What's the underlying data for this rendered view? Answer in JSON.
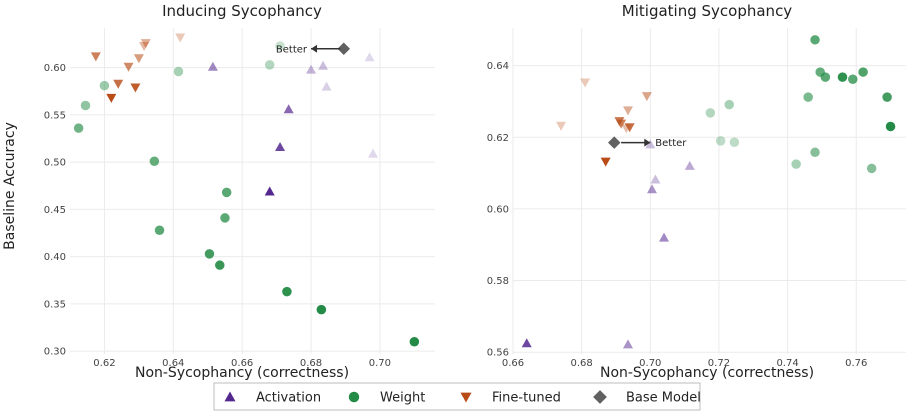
{
  "chart_data": [
    {
      "type": "scatter",
      "title": "Inducing Sycophancy",
      "xlabel": "Non-Sycophancy (correctness)",
      "ylabel": "Baseline Accuracy",
      "xlim": [
        0.61,
        0.716
      ],
      "ylim": [
        0.297,
        0.642
      ],
      "xticks": [
        "0.62",
        "0.64",
        "0.66",
        "0.68",
        "0.70"
      ],
      "yticks": [
        "0.30",
        "0.35",
        "0.40",
        "0.45",
        "0.50",
        "0.55",
        "0.60"
      ],
      "grid": true,
      "annotation": {
        "text": "Better",
        "arrow_from": [
          0.6885,
          0.62
        ],
        "arrow_to": [
          0.68,
          0.62
        ]
      },
      "series": [
        {
          "name": "Activation",
          "marker": "triangle-up",
          "color": "#54278f",
          "points": [
            {
              "x": 0.6515,
              "y": 0.601,
              "a": 0.55
            },
            {
              "x": 0.668,
              "y": 0.469,
              "a": 1.0
            },
            {
              "x": 0.671,
              "y": 0.516,
              "a": 0.85
            },
            {
              "x": 0.6735,
              "y": 0.556,
              "a": 0.7
            },
            {
              "x": 0.68,
              "y": 0.598,
              "a": 0.35
            },
            {
              "x": 0.6835,
              "y": 0.602,
              "a": 0.3
            },
            {
              "x": 0.6845,
              "y": 0.58,
              "a": 0.22
            },
            {
              "x": 0.697,
              "y": 0.611,
              "a": 0.18
            },
            {
              "x": 0.698,
              "y": 0.509,
              "a": 0.18
            }
          ]
        },
        {
          "name": "Weight",
          "marker": "circle",
          "color": "#238b45",
          "points": [
            {
              "x": 0.6125,
              "y": 0.536,
              "a": 0.65
            },
            {
              "x": 0.6145,
              "y": 0.56,
              "a": 0.5
            },
            {
              "x": 0.62,
              "y": 0.581,
              "a": 0.45
            },
            {
              "x": 0.6345,
              "y": 0.501,
              "a": 0.7
            },
            {
              "x": 0.636,
              "y": 0.428,
              "a": 0.75
            },
            {
              "x": 0.6415,
              "y": 0.596,
              "a": 0.4
            },
            {
              "x": 0.6505,
              "y": 0.403,
              "a": 0.85
            },
            {
              "x": 0.6535,
              "y": 0.391,
              "a": 0.9
            },
            {
              "x": 0.655,
              "y": 0.441,
              "a": 0.75
            },
            {
              "x": 0.6555,
              "y": 0.468,
              "a": 0.75
            },
            {
              "x": 0.668,
              "y": 0.603,
              "a": 0.35
            },
            {
              "x": 0.671,
              "y": 0.623,
              "a": 0.25
            },
            {
              "x": 0.673,
              "y": 0.363,
              "a": 0.95
            },
            {
              "x": 0.683,
              "y": 0.344,
              "a": 1.0
            },
            {
              "x": 0.71,
              "y": 0.31,
              "a": 1.0
            }
          ]
        },
        {
          "name": "Fine-tuned",
          "marker": "triangle-down",
          "color": "#b84b16",
          "points": [
            {
              "x": 0.6175,
              "y": 0.612,
              "a": 0.7
            },
            {
              "x": 0.622,
              "y": 0.568,
              "a": 1.0
            },
            {
              "x": 0.624,
              "y": 0.583,
              "a": 0.8
            },
            {
              "x": 0.627,
              "y": 0.601,
              "a": 0.65
            },
            {
              "x": 0.629,
              "y": 0.579,
              "a": 0.9
            },
            {
              "x": 0.63,
              "y": 0.61,
              "a": 0.55
            },
            {
              "x": 0.6315,
              "y": 0.623,
              "a": 0.4
            },
            {
              "x": 0.632,
              "y": 0.626,
              "a": 0.45
            },
            {
              "x": 0.642,
              "y": 0.632,
              "a": 0.3
            }
          ]
        },
        {
          "name": "Base Model",
          "marker": "diamond",
          "color": "#616161",
          "points": [
            {
              "x": 0.6895,
              "y": 0.62,
              "a": 1.0
            }
          ]
        }
      ]
    },
    {
      "type": "scatter",
      "title": "Mitigating Sycophancy",
      "xlabel": "Non-Sycophancy (correctness)",
      "ylabel": "",
      "xlim": [
        0.66,
        0.7745
      ],
      "ylim": [
        0.5595,
        0.6505
      ],
      "xticks": [
        "0.66",
        "0.68",
        "0.70",
        "0.72",
        "0.74",
        "0.76"
      ],
      "yticks": [
        "0.56",
        "0.58",
        "0.60",
        "0.62",
        "0.64"
      ],
      "grid": true,
      "annotation": {
        "text": "Better",
        "arrow_from": [
          0.6915,
          0.6185
        ],
        "arrow_to": [
          0.7,
          0.6185
        ]
      },
      "series": [
        {
          "name": "Activation",
          "marker": "triangle-up",
          "color": "#54278f",
          "points": [
            {
              "x": 0.664,
              "y": 0.5625,
              "a": 0.85
            },
            {
              "x": 0.6935,
              "y": 0.5622,
              "a": 0.5
            },
            {
              "x": 0.7,
              "y": 0.618,
              "a": 0.3
            },
            {
              "x": 0.7005,
              "y": 0.6055,
              "a": 0.5
            },
            {
              "x": 0.7015,
              "y": 0.6082,
              "a": 0.3
            },
            {
              "x": 0.704,
              "y": 0.592,
              "a": 0.55
            },
            {
              "x": 0.7115,
              "y": 0.612,
              "a": 0.4
            }
          ]
        },
        {
          "name": "Weight",
          "marker": "circle",
          "color": "#238b45",
          "points": [
            {
              "x": 0.7175,
              "y": 0.6268,
              "a": 0.35
            },
            {
              "x": 0.7205,
              "y": 0.619,
              "a": 0.3
            },
            {
              "x": 0.723,
              "y": 0.6291,
              "a": 0.4
            },
            {
              "x": 0.7245,
              "y": 0.6186,
              "a": 0.3
            },
            {
              "x": 0.7425,
              "y": 0.6125,
              "a": 0.4
            },
            {
              "x": 0.746,
              "y": 0.6312,
              "a": 0.6
            },
            {
              "x": 0.748,
              "y": 0.6158,
              "a": 0.55
            },
            {
              "x": 0.748,
              "y": 0.6472,
              "a": 0.75
            },
            {
              "x": 0.7495,
              "y": 0.6382,
              "a": 0.7
            },
            {
              "x": 0.751,
              "y": 0.6368,
              "a": 0.75
            },
            {
              "x": 0.756,
              "y": 0.6368,
              "a": 0.95
            },
            {
              "x": 0.759,
              "y": 0.6362,
              "a": 0.75
            },
            {
              "x": 0.762,
              "y": 0.6382,
              "a": 0.8
            },
            {
              "x": 0.7645,
              "y": 0.6113,
              "a": 0.55
            },
            {
              "x": 0.769,
              "y": 0.6312,
              "a": 0.85
            },
            {
              "x": 0.77,
              "y": 0.623,
              "a": 1.0
            }
          ]
        },
        {
          "name": "Fine-tuned",
          "marker": "triangle-down",
          "color": "#b84b16",
          "points": [
            {
              "x": 0.674,
              "y": 0.6232,
              "a": 0.3
            },
            {
              "x": 0.681,
              "y": 0.6353,
              "a": 0.3
            },
            {
              "x": 0.687,
              "y": 0.6132,
              "a": 1.0
            },
            {
              "x": 0.691,
              "y": 0.6245,
              "a": 0.75
            },
            {
              "x": 0.6915,
              "y": 0.6238,
              "a": 0.7
            },
            {
              "x": 0.693,
              "y": 0.6225,
              "a": 0.35
            },
            {
              "x": 0.6935,
              "y": 0.6275,
              "a": 0.45
            },
            {
              "x": 0.694,
              "y": 0.6228,
              "a": 0.8
            },
            {
              "x": 0.699,
              "y": 0.6315,
              "a": 0.5
            }
          ]
        },
        {
          "name": "Base Model",
          "marker": "diamond",
          "color": "#616161",
          "points": [
            {
              "x": 0.6895,
              "y": 0.6185,
              "a": 1.0
            }
          ]
        }
      ]
    }
  ],
  "legend": {
    "placement": "bottom-center",
    "items": [
      {
        "label": "Activation",
        "marker": "triangle-up",
        "color": "#54278f"
      },
      {
        "label": "Weight",
        "marker": "circle",
        "color": "#238b45"
      },
      {
        "label": "Fine-tuned",
        "marker": "triangle-down",
        "color": "#b84b16"
      },
      {
        "label": "Base Model",
        "marker": "diamond",
        "color": "#616161"
      }
    ]
  }
}
